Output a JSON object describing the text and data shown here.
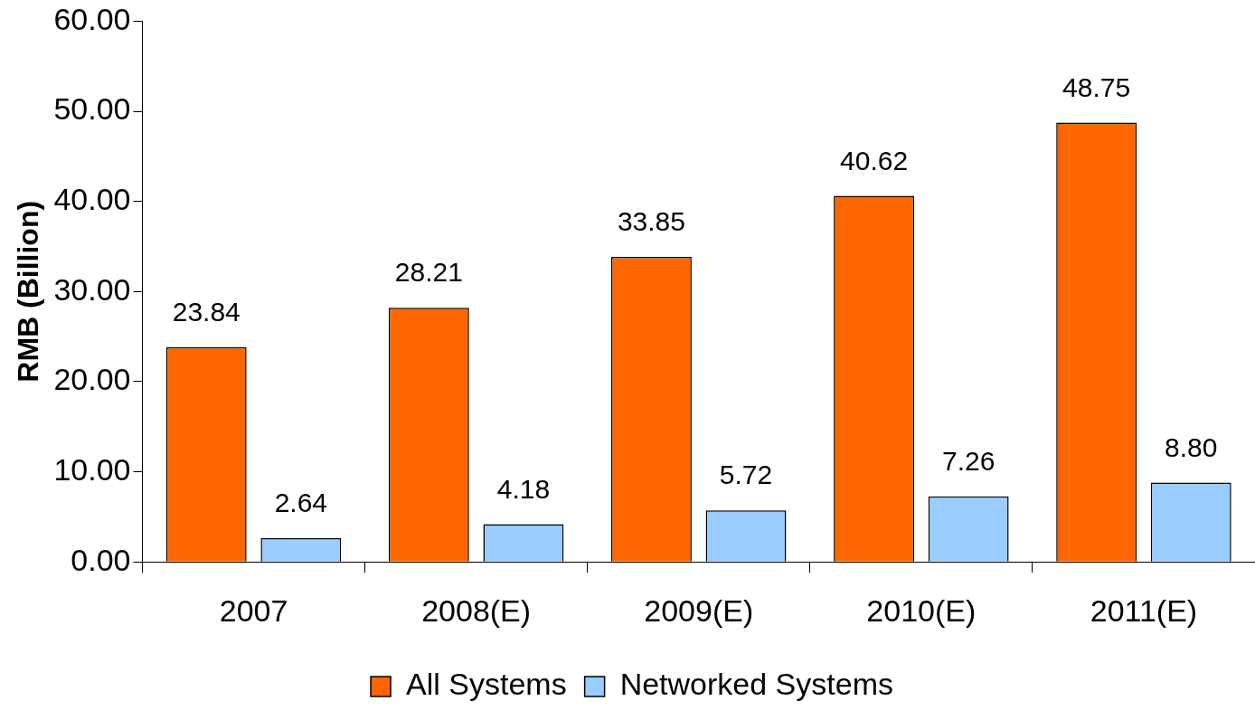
{
  "chart_data": {
    "type": "bar",
    "ylabel": "RMB (Billion)",
    "categories": [
      "2007",
      "2008(E)",
      "2009(E)",
      "2010(E)",
      "2011(E)"
    ],
    "series": [
      {
        "name": "All Systems",
        "color": "#ff6600",
        "values": [
          23.84,
          28.21,
          33.85,
          40.62,
          48.75
        ],
        "value_labels": [
          "23.84",
          "28.21",
          "33.85",
          "40.62",
          "48.75"
        ]
      },
      {
        "name": "Networked Systems",
        "color": "#99ccff",
        "values": [
          2.64,
          4.18,
          5.72,
          7.26,
          8.8
        ],
        "value_labels": [
          "2.64",
          "4.18",
          "5.72",
          "7.26",
          "8.80"
        ]
      }
    ],
    "ylim": [
      0,
      60
    ],
    "yticks": [
      {
        "value": 0,
        "label": "0.00"
      },
      {
        "value": 10,
        "label": "10.00"
      },
      {
        "value": 20,
        "label": "20.00"
      },
      {
        "value": 30,
        "label": "30.00"
      },
      {
        "value": 40,
        "label": "40.00"
      },
      {
        "value": 50,
        "label": "50.00"
      },
      {
        "value": 60,
        "label": "60.00"
      }
    ],
    "grid": false,
    "legend": "bottom"
  }
}
